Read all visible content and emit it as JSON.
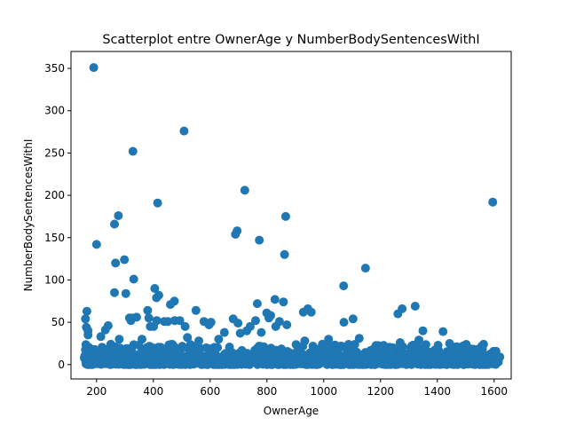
{
  "chart_data": {
    "type": "scatter",
    "title": "Scatterplot entre OwnerAge y NumberBodySentencesWithI",
    "xlabel": "OwnerAge",
    "ylabel": "NumberBodySentencesWithI",
    "xlim": [
      110,
      1660
    ],
    "ylim": [
      -17,
      370
    ],
    "xticks": [
      200,
      400,
      600,
      800,
      1000,
      1200,
      1400,
      1600
    ],
    "yticks": [
      0,
      50,
      100,
      150,
      200,
      250,
      300,
      350
    ],
    "grid": false,
    "marker_color": "#1f77b4",
    "series": [
      {
        "points": [
          [
            190,
            351
          ],
          [
            508,
            276
          ],
          [
            328,
            252
          ],
          [
            722,
            206
          ],
          [
            415,
            191
          ],
          [
            1595,
            192
          ],
          [
            277,
            176
          ],
          [
            866,
            175
          ],
          [
            263,
            166
          ],
          [
            695,
            158
          ],
          [
            689,
            154
          ],
          [
            200,
            142
          ],
          [
            773,
            147
          ],
          [
            862,
            130
          ],
          [
            298,
            124
          ],
          [
            267,
            120
          ],
          [
            1147,
            114
          ],
          [
            331,
            101
          ],
          [
            1070,
            93
          ],
          [
            263,
            85
          ],
          [
            303,
            84
          ],
          [
            405,
            90
          ],
          [
            419,
            82
          ],
          [
            411,
            79
          ],
          [
            474,
            75
          ],
          [
            460,
            71
          ],
          [
            828,
            77
          ],
          [
            858,
            74
          ],
          [
            766,
            72
          ],
          [
            166,
            63
          ],
          [
            161,
            54
          ],
          [
            164,
            44
          ],
          [
            170,
            40
          ],
          [
            170,
            35
          ],
          [
            231,
            41
          ],
          [
            241,
            46
          ],
          [
            316,
            55
          ],
          [
            321,
            52
          ],
          [
            327,
            55
          ],
          [
            341,
            56
          ],
          [
            380,
            64
          ],
          [
            384,
            55
          ],
          [
            389,
            45
          ],
          [
            401,
            45
          ],
          [
            412,
            52
          ],
          [
            438,
            51
          ],
          [
            451,
            51
          ],
          [
            475,
            52
          ],
          [
            493,
            52
          ],
          [
            512,
            45
          ],
          [
            550,
            64
          ],
          [
            578,
            51
          ],
          [
            603,
            50
          ],
          [
            596,
            47
          ],
          [
            681,
            54
          ],
          [
            698,
            49
          ],
          [
            706,
            37
          ],
          [
            729,
            40
          ],
          [
            741,
            45
          ],
          [
            760,
            52
          ],
          [
            799,
            61
          ],
          [
            807,
            55
          ],
          [
            813,
            58
          ],
          [
            831,
            45
          ],
          [
            844,
            51
          ],
          [
            870,
            47
          ],
          [
            928,
            62
          ],
          [
            944,
            66
          ],
          [
            956,
            62
          ],
          [
            1071,
            50
          ],
          [
            1103,
            54
          ],
          [
            1125,
            31
          ],
          [
            1261,
            60
          ],
          [
            1276,
            66
          ],
          [
            1322,
            69
          ],
          [
            1335,
            29
          ],
          [
            1349,
            40
          ],
          [
            1420,
            39
          ],
          [
            1443,
            25
          ],
          [
            1469,
            21
          ],
          [
            1500,
            22
          ],
          [
            1530,
            18
          ],
          [
            933,
            28
          ],
          [
            1017,
            30
          ],
          [
            1269,
            26
          ],
          [
            1310,
            22
          ],
          [
            780,
            38
          ],
          [
            650,
            38
          ],
          [
            630,
            30
          ],
          [
            560,
            28
          ],
          [
            520,
            32
          ],
          [
            360,
            30
          ],
          [
            280,
            30
          ],
          [
            250,
            24
          ],
          [
            215,
            33
          ],
          [
            995,
            24
          ],
          [
            1180,
            20
          ],
          [
            1390,
            17
          ],
          [
            1560,
            12
          ],
          [
            1620,
            9
          ]
        ]
      }
    ]
  }
}
